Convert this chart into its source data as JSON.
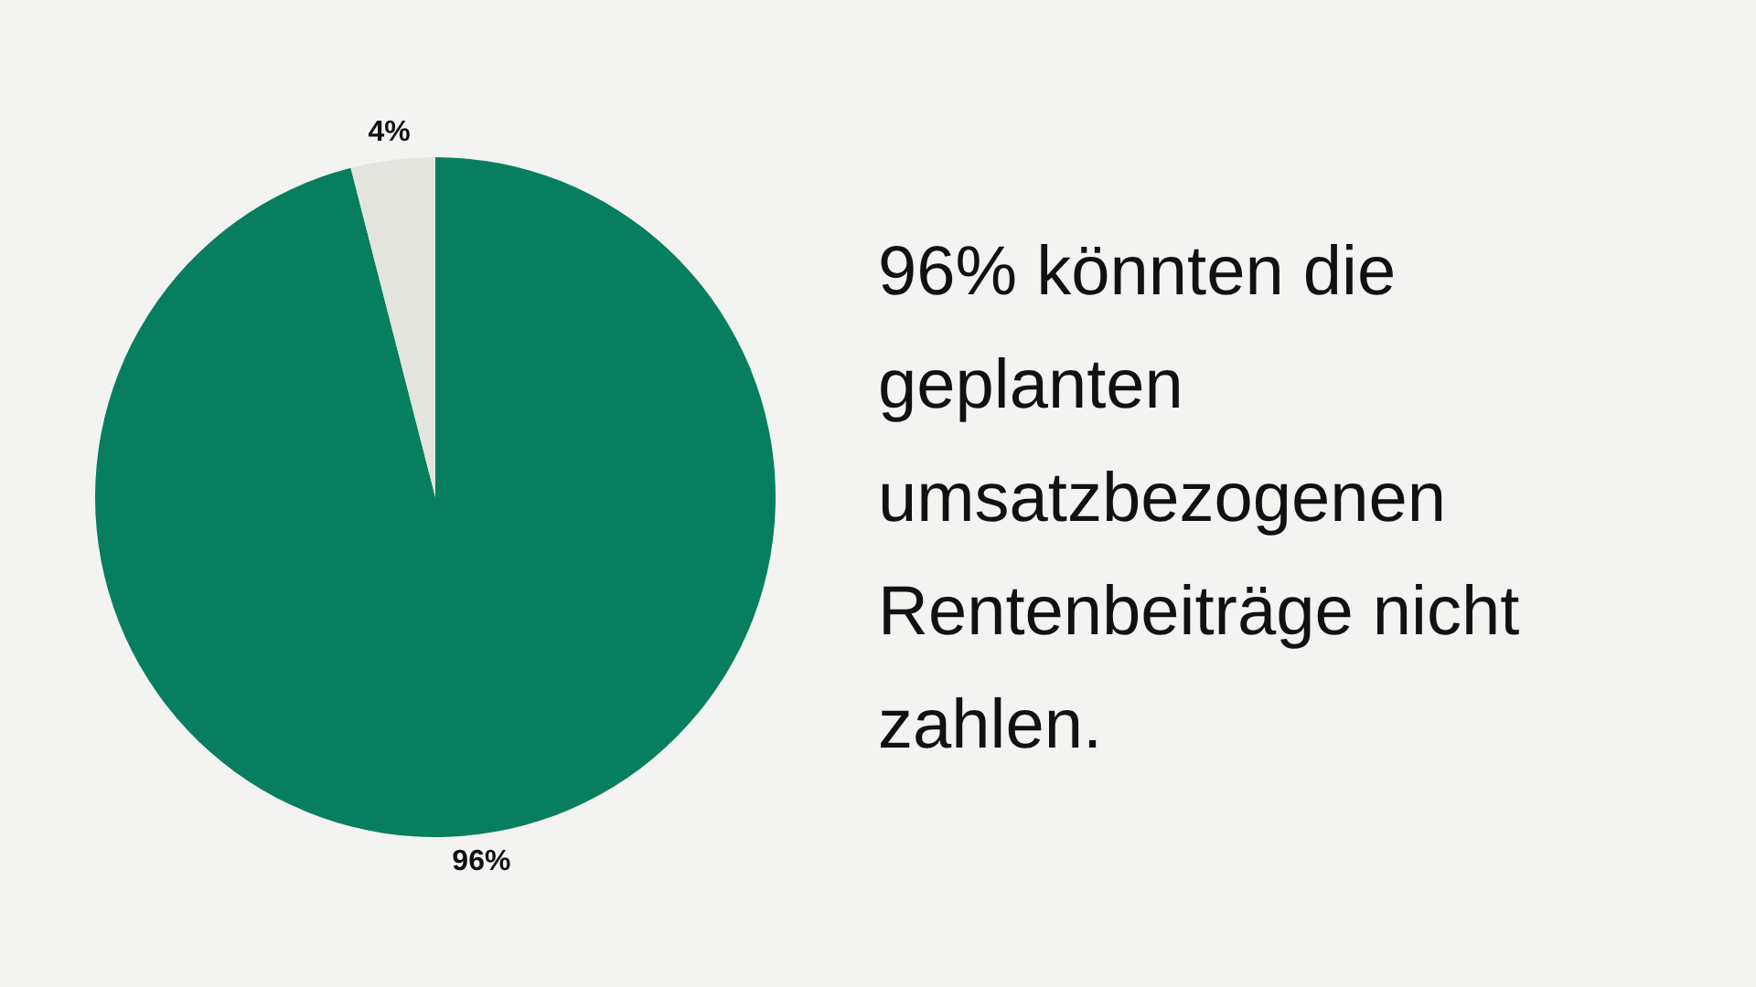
{
  "chart_data": {
    "type": "pie",
    "title": "96% könnten die geplanten umsatzbezogenen Rentenbeiträge nicht zahlen.",
    "categories": [
      null,
      null
    ],
    "values": [
      96,
      4
    ],
    "colors": [
      "#077f5f",
      "#e4e4df"
    ],
    "value_labels": [
      "96%",
      "4%"
    ]
  }
}
